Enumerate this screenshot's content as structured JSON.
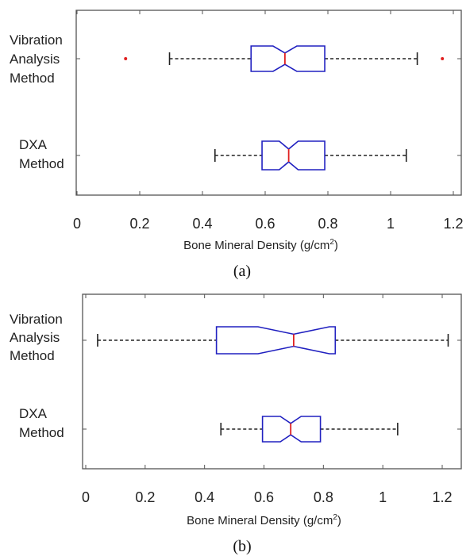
{
  "chart_data": [
    {
      "type": "boxplot",
      "caption": "(a)",
      "xlabel": "Bone Mineral Density (g/cm",
      "xlabel_sup": "2",
      "xlabel_close": ")",
      "xlim": [
        0,
        1.2
      ],
      "xticks": [
        0,
        0.2,
        0.4,
        0.6,
        0.8,
        1,
        1.2
      ],
      "xtick_labels": [
        "0",
        "0.2",
        "0.4",
        "0.6",
        "0.8",
        "1",
        "1.2"
      ],
      "notched": true,
      "grid": false,
      "colors": {
        "box": "#2020c0",
        "median": "#e02020",
        "whisker": "#222222",
        "outlier": "#e02020"
      },
      "categories": [
        {
          "label_lines": [
            "Vibration",
            "Analysis",
            "Method"
          ],
          "whisker_low": 0.295,
          "q1": 0.555,
          "notch_low": 0.625,
          "median": 0.663,
          "notch_high": 0.701,
          "q3": 0.79,
          "whisker_high": 1.085,
          "outliers": [
            0.155,
            1.165
          ]
        },
        {
          "label_lines": [
            "DXA",
            "Method"
          ],
          "whisker_low": 0.44,
          "q1": 0.59,
          "notch_low": 0.645,
          "median": 0.675,
          "notch_high": 0.705,
          "q3": 0.79,
          "whisker_high": 1.05,
          "outliers": []
        }
      ]
    },
    {
      "type": "boxplot",
      "caption": "(b)",
      "xlabel": "Bone Mineral Density (g/cm",
      "xlabel_sup": "2",
      "xlabel_close": ")",
      "xlim": [
        0,
        1.2
      ],
      "xticks": [
        0,
        0.2,
        0.4,
        0.6,
        0.8,
        1,
        1.2
      ],
      "xtick_labels": [
        "0",
        "0.2",
        "0.4",
        "0.6",
        "0.8",
        "1",
        "1.2"
      ],
      "notched": true,
      "grid": false,
      "colors": {
        "box": "#2020c0",
        "median": "#e02020",
        "whisker": "#222222",
        "outlier": "#e02020"
      },
      "categories": [
        {
          "label_lines": [
            "Vibration",
            "Analysis",
            "Method"
          ],
          "whisker_low": 0.04,
          "q1": 0.44,
          "notch_low": 0.58,
          "median": 0.7,
          "notch_high": 0.82,
          "q3": 0.84,
          "whisker_high": 1.22,
          "outliers": []
        },
        {
          "label_lines": [
            "DXA",
            "Method"
          ],
          "whisker_low": 0.455,
          "q1": 0.595,
          "notch_low": 0.655,
          "median": 0.69,
          "notch_high": 0.725,
          "q3": 0.79,
          "whisker_high": 1.05,
          "outliers": []
        }
      ]
    }
  ]
}
